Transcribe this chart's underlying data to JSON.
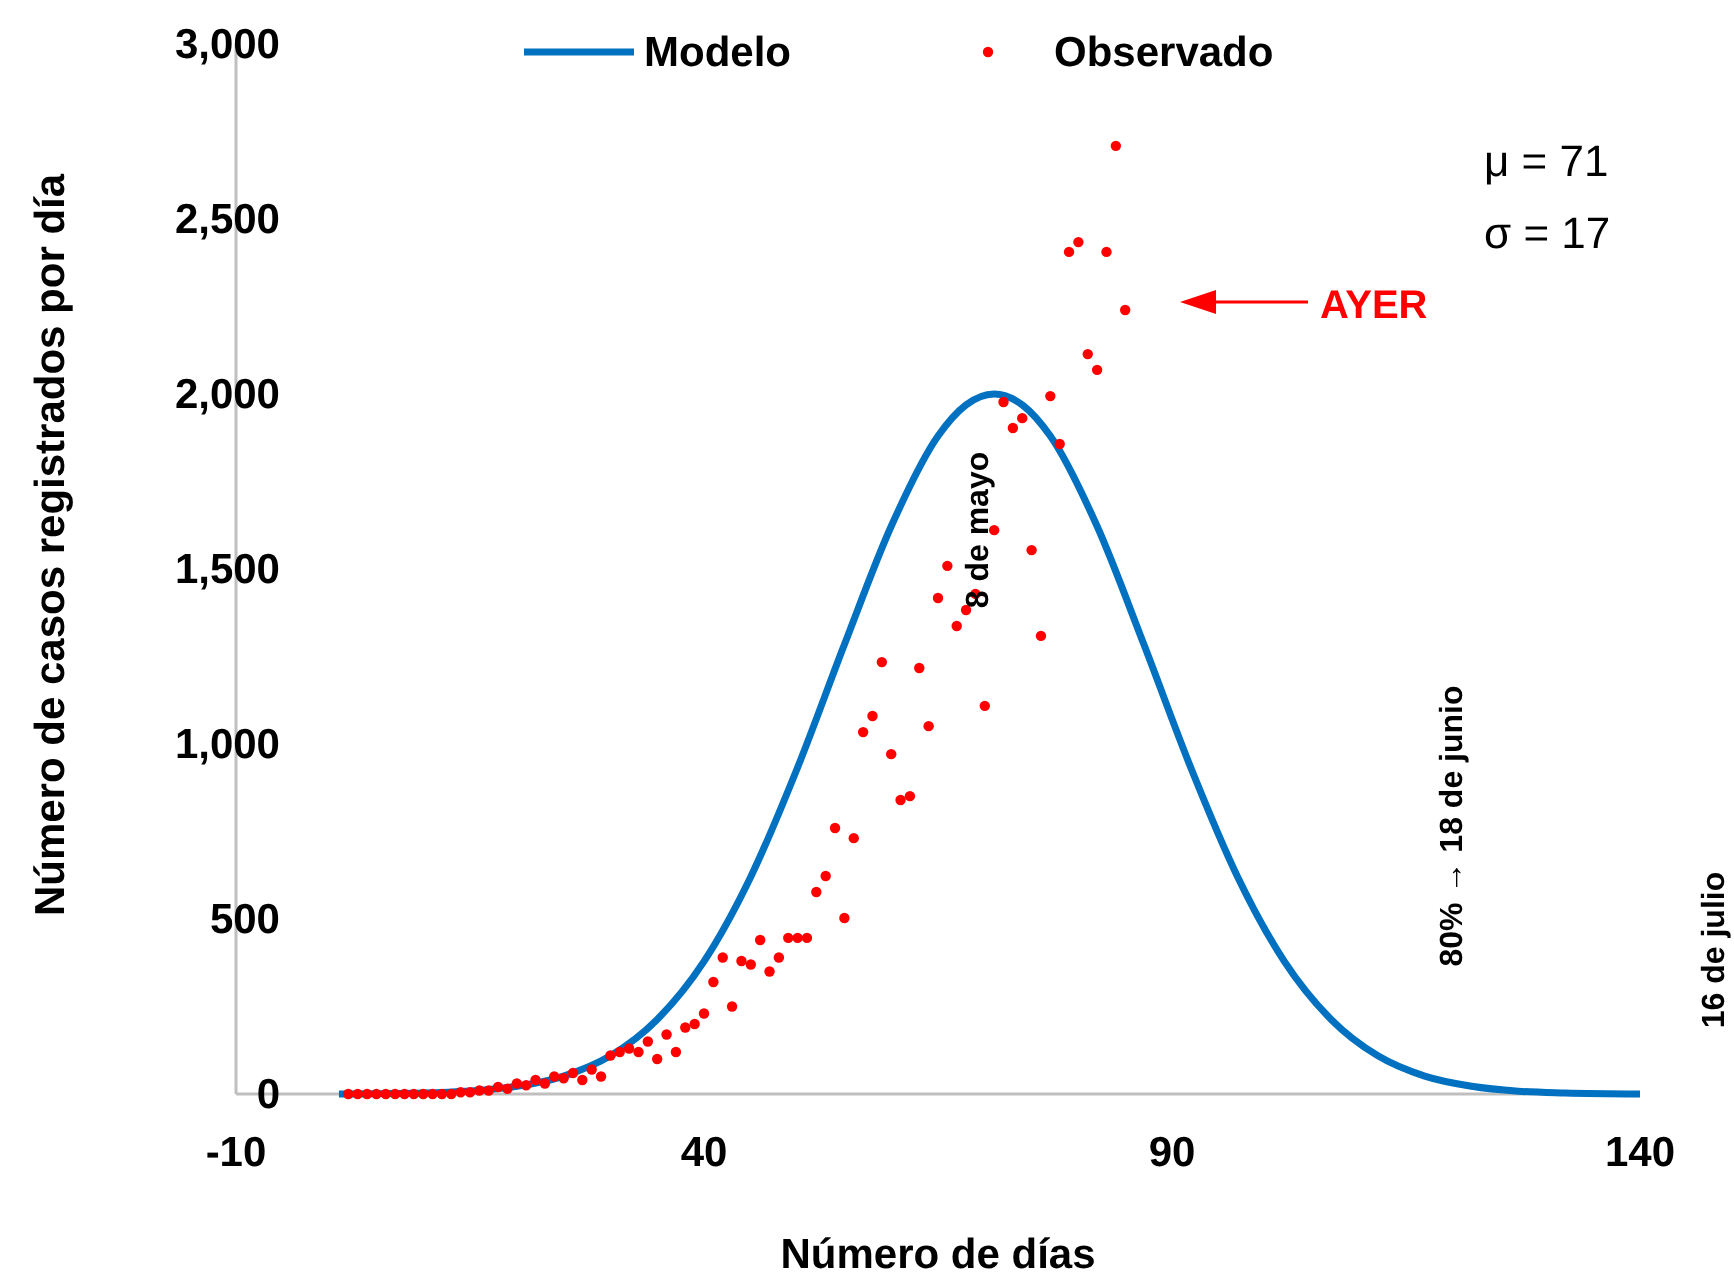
{
  "chart_data": {
    "type": "line",
    "xlabel": "Número de días",
    "ylabel": "Número de casos registrados por día",
    "xlim": [
      -10,
      140
    ],
    "xticks": [
      -10,
      40,
      90,
      140
    ],
    "ylim": [
      0,
      3000
    ],
    "yticks": [
      {
        "value": 0,
        "label": "0"
      },
      {
        "value": 500,
        "label": "500"
      },
      {
        "value": 1000,
        "label": "1,000"
      },
      {
        "value": 1500,
        "label": "1,500"
      },
      {
        "value": 2000,
        "label": "2,000"
      },
      {
        "value": 2500,
        "label": "2,500"
      },
      {
        "value": 3000,
        "label": "3,000"
      }
    ],
    "grid": false,
    "legend": "top",
    "series": [
      {
        "name": "Modelo",
        "color": "#0070c0",
        "marker": "none",
        "x": [
          1,
          10,
          20,
          25,
          30,
          35,
          40,
          45,
          50,
          55,
          60,
          65,
          68,
          71,
          74,
          77,
          82,
          87,
          92,
          97,
          102,
          107,
          112,
          117,
          122,
          127,
          132,
          140
        ],
        "values": [
          0,
          3,
          22,
          51,
          109,
          213,
          379,
          621,
          933,
          1284,
          1622,
          1880,
          1969,
          2000,
          1969,
          1880,
          1622,
          1284,
          933,
          621,
          379,
          213,
          109,
          51,
          22,
          8,
          3,
          0
        ]
      },
      {
        "name": "Observado",
        "type": "scatter",
        "color": "#ff0000",
        "marker": "circle",
        "x": [
          2,
          3,
          4,
          5,
          6,
          7,
          8,
          9,
          10,
          11,
          12,
          13,
          14,
          15,
          16,
          17,
          18,
          19,
          20,
          21,
          22,
          23,
          24,
          25,
          26,
          27,
          28,
          29,
          30,
          31,
          32,
          33,
          34,
          35,
          36,
          37,
          38,
          39,
          40,
          41,
          42,
          43,
          44,
          45,
          46,
          47,
          48,
          49,
          50,
          51,
          52,
          53,
          54,
          55,
          56,
          57,
          58,
          59,
          60,
          61,
          62,
          63,
          64,
          65,
          66,
          67,
          68,
          69,
          70,
          71,
          72,
          73,
          74,
          75,
          76,
          77,
          78,
          79,
          80,
          81,
          82,
          83,
          84,
          85
        ],
        "values": [
          0,
          0,
          0,
          0,
          0,
          0,
          0,
          0,
          0,
          0,
          0,
          0,
          5,
          5,
          10,
          10,
          20,
          15,
          30,
          25,
          40,
          30,
          50,
          45,
          60,
          40,
          70,
          50,
          110,
          120,
          130,
          120,
          150,
          100,
          170,
          120,
          190,
          200,
          230,
          320,
          390,
          250,
          380,
          370,
          440,
          350,
          390,
          446,
          446,
          446,
          577,
          623,
          760,
          503,
          731,
          1034,
          1080,
          1234,
          971,
          840,
          851,
          1217,
          1051,
          1417,
          1509,
          1337,
          1383,
          1429,
          1109,
          1611,
          1977,
          1903,
          1931,
          1554,
          1309,
          1994,
          1857,
          2406,
          2434,
          2114,
          2069,
          2406,
          2709,
          2240
        ]
      }
    ],
    "annotations": [
      "μ = 71",
      "σ = 17",
      "AYER",
      "8 de mayo",
      "80% → 18 de junio",
      "16 de julio"
    ]
  }
}
